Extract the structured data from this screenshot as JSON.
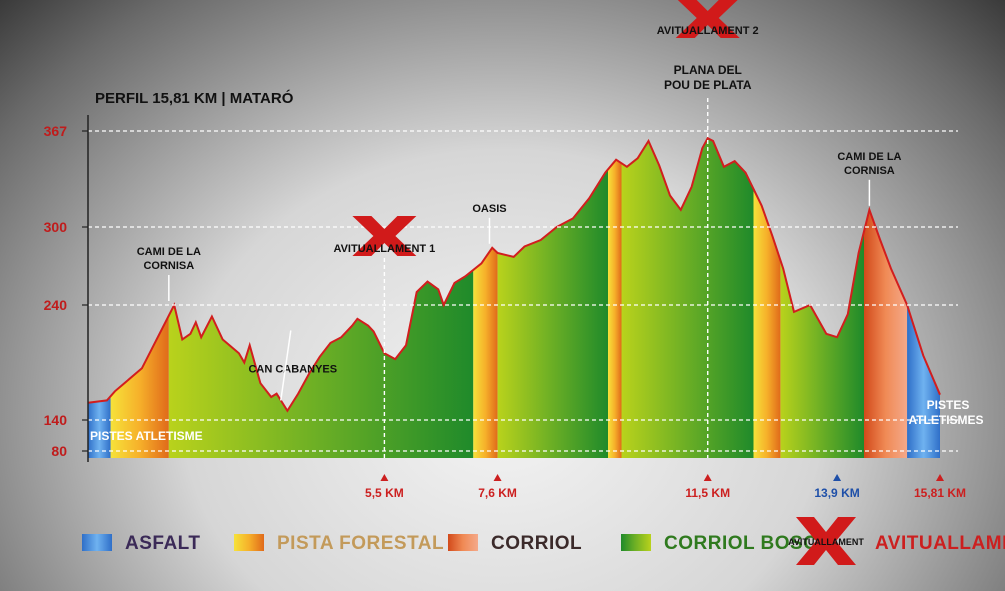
{
  "chart_data": {
    "type": "area",
    "title": "PERFIL 15,81 KM | MATARÓ",
    "y_ticks": [
      80,
      140,
      240,
      300,
      367
    ],
    "ylim": [
      75,
      367
    ],
    "xlim": [
      0,
      15.81
    ],
    "profile": [
      [
        0,
        155
      ],
      [
        0.35,
        157
      ],
      [
        0.5,
        165
      ],
      [
        1.0,
        185
      ],
      [
        1.6,
        240
      ],
      [
        1.75,
        210
      ],
      [
        1.9,
        215
      ],
      [
        2.0,
        225
      ],
      [
        2.1,
        212
      ],
      [
        2.3,
        230
      ],
      [
        2.5,
        210
      ],
      [
        2.8,
        198
      ],
      [
        2.9,
        190
      ],
      [
        3.0,
        205
      ],
      [
        3.2,
        172
      ],
      [
        3.4,
        160
      ],
      [
        3.5,
        163
      ],
      [
        3.7,
        148
      ],
      [
        3.9,
        163
      ],
      [
        4.1,
        180
      ],
      [
        4.3,
        195
      ],
      [
        4.5,
        207
      ],
      [
        4.7,
        212
      ],
      [
        4.9,
        222
      ],
      [
        5.0,
        228
      ],
      [
        5.2,
        222
      ],
      [
        5.3,
        217
      ],
      [
        5.5,
        198
      ],
      [
        5.7,
        193
      ],
      [
        5.9,
        205
      ],
      [
        6.1,
        250
      ],
      [
        6.3,
        258
      ],
      [
        6.5,
        252
      ],
      [
        6.6,
        240
      ],
      [
        6.8,
        257
      ],
      [
        7.0,
        262
      ],
      [
        7.3,
        272
      ],
      [
        7.5,
        284
      ],
      [
        7.6,
        280
      ],
      [
        7.9,
        277
      ],
      [
        8.1,
        285
      ],
      [
        8.4,
        290
      ],
      [
        8.7,
        300
      ],
      [
        9.0,
        306
      ],
      [
        9.3,
        320
      ],
      [
        9.6,
        338
      ],
      [
        9.8,
        347
      ],
      [
        10.0,
        342
      ],
      [
        10.2,
        348
      ],
      [
        10.4,
        360
      ],
      [
        10.6,
        343
      ],
      [
        10.8,
        322
      ],
      [
        11.0,
        312
      ],
      [
        11.2,
        328
      ],
      [
        11.4,
        355
      ],
      [
        11.5,
        362
      ],
      [
        11.6,
        360
      ],
      [
        11.8,
        342
      ],
      [
        12.0,
        346
      ],
      [
        12.2,
        338
      ],
      [
        12.5,
        315
      ],
      [
        12.7,
        293
      ],
      [
        12.9,
        268
      ],
      [
        13.1,
        234
      ],
      [
        13.4,
        240
      ],
      [
        13.7,
        215
      ],
      [
        13.9,
        212
      ],
      [
        14.1,
        232
      ],
      [
        14.3,
        280
      ],
      [
        14.5,
        312
      ],
      [
        14.7,
        290
      ],
      [
        14.9,
        268
      ],
      [
        15.2,
        240
      ],
      [
        15.5,
        196
      ],
      [
        15.81,
        162
      ]
    ],
    "segments": [
      {
        "from": 0.0,
        "to": 0.42,
        "surface": "ASFALT"
      },
      {
        "from": 0.42,
        "to": 1.5,
        "surface": "PISTA FORESTAL"
      },
      {
        "from": 1.5,
        "to": 7.15,
        "surface": "CORRIOL BOSC"
      },
      {
        "from": 7.15,
        "to": 7.6,
        "surface": "PISTA FORESTAL"
      },
      {
        "from": 7.6,
        "to": 9.65,
        "surface": "CORRIOL BOSC"
      },
      {
        "from": 9.65,
        "to": 9.9,
        "surface": "PISTA FORESTAL"
      },
      {
        "from": 9.9,
        "to": 12.35,
        "surface": "CORRIOL BOSC"
      },
      {
        "from": 12.35,
        "to": 12.85,
        "surface": "PISTA FORESTAL"
      },
      {
        "from": 12.85,
        "to": 14.4,
        "surface": "CORRIOL BOSC"
      },
      {
        "from": 14.4,
        "to": 15.2,
        "surface": "CORRIOL"
      },
      {
        "from": 15.2,
        "to": 15.81,
        "surface": "ASFALT"
      }
    ],
    "km_markers": [
      {
        "km": 5.5,
        "label": "5,5 KM",
        "color": "#cc1f1f"
      },
      {
        "km": 7.6,
        "label": "7,6 KM",
        "color": "#cc1f1f"
      },
      {
        "km": 11.5,
        "label": "11,5 KM",
        "color": "#cc1f1f"
      },
      {
        "km": 13.9,
        "label": "13,9 KM",
        "color": "#1e4fa8"
      },
      {
        "km": 15.81,
        "label": "15,81 KM",
        "color": "#cc1f1f"
      }
    ],
    "annotations": [
      {
        "km": 1.5,
        "elev": 240,
        "lines": [
          "CAMI DE LA",
          "CORNISA"
        ]
      },
      {
        "km": 3.8,
        "elev": 150,
        "lines": [
          "CAN CABANYES"
        ]
      },
      {
        "km": 7.45,
        "elev": 284,
        "lines": [
          "OASIS"
        ]
      },
      {
        "km": 14.5,
        "elev": 312,
        "lines": [
          "CAMI DE LA",
          "CORNISA"
        ]
      }
    ],
    "aid_stations": [
      {
        "km": 5.5,
        "label": "AVITUALLAMENT 1"
      },
      {
        "km": 11.5,
        "label": "AVITUALLAMENT 2",
        "extra": [
          "PLANA DEL",
          "POU DE PLATA"
        ]
      }
    ],
    "end_labels": {
      "start": [
        "PISTES ATLETISME"
      ],
      "finish": [
        "PISTES",
        "ATLETISMES"
      ]
    }
  },
  "legend": [
    {
      "label": "ASFALT",
      "color": "#3b2a57"
    },
    {
      "label": "PISTA FORESTAL",
      "color": "#c39a5a"
    },
    {
      "label": "CORRIOL",
      "color": "#3b2a2a"
    },
    {
      "label": "CORRIOL BOSC",
      "color": "#2f7a1e"
    },
    {
      "label": "AVITUALLAMENT",
      "color": "#cc1f1f"
    }
  ],
  "logo_text": "AVITUALLAMENT"
}
